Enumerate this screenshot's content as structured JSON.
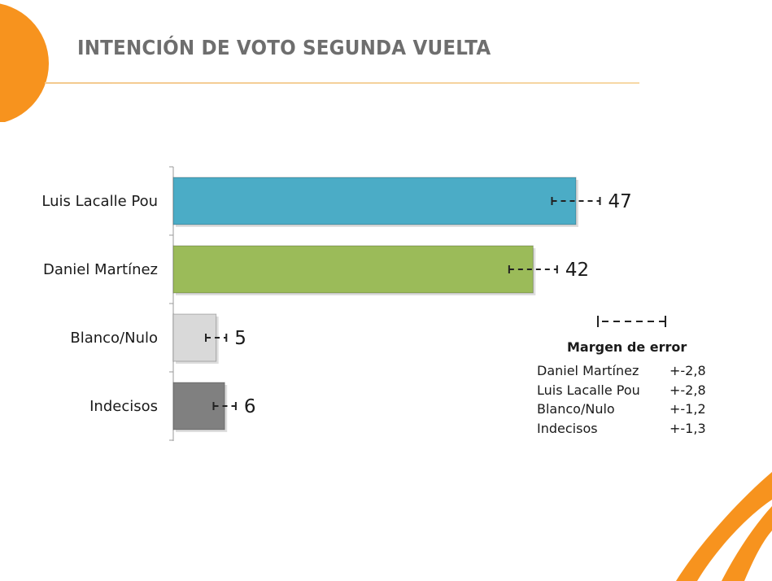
{
  "title": "INTENCIÓN DE VOTO SEGUNDA VUELTA",
  "colors": {
    "orange": "#f7931e",
    "title_gray": "#6e6e6e",
    "rule": "#f3c98e"
  },
  "chart_data": {
    "type": "bar",
    "orientation": "horizontal",
    "categories": [
      "Luis Lacalle Pou",
      "Daniel Martínez",
      "Blanco/Nulo",
      "Indecisos"
    ],
    "values": [
      47,
      42,
      5,
      6
    ],
    "value_labels": [
      "47",
      "42",
      "5",
      "6"
    ],
    "bar_colors": [
      "#4bacc6",
      "#9bbb59",
      "#d9d9d9",
      "#808080"
    ],
    "error_margins": [
      2.8,
      2.8,
      1.2,
      1.3
    ],
    "xlim": [
      0,
      60
    ],
    "grid": false
  },
  "legend": {
    "title": "Margen de error",
    "rows": [
      {
        "name": "Daniel Martínez",
        "value": "+-2,8"
      },
      {
        "name": "Luis Lacalle Pou",
        "value": "+-2,8"
      },
      {
        "name": "Blanco/Nulo",
        "value": "+-1,2"
      },
      {
        "name": "Indecisos",
        "value": "+-1,3"
      }
    ]
  }
}
